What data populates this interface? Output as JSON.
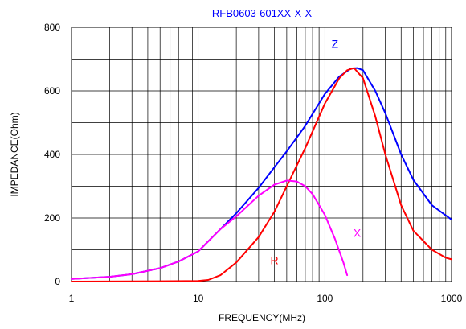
{
  "chart_data": {
    "type": "line",
    "title": "RFB0603-601XX-X-X",
    "xlabel": "FREQUENCY(MHz)",
    "ylabel": "IMPEDANCE(Ohm)",
    "xscale": "log",
    "xlim": [
      1,
      1000
    ],
    "ylim": [
      0,
      800
    ],
    "x_ticks": [
      1,
      10,
      100,
      1000
    ],
    "y_ticks": [
      0,
      200,
      400,
      600,
      800
    ],
    "grid": true,
    "colors": {
      "title": "#0000ff",
      "Z": "#0000ff",
      "R": "#ff0000",
      "X": "#ff00ff"
    },
    "series": [
      {
        "name": "Z",
        "color": "#0000ff",
        "label_at": [
          120,
          735
        ],
        "x": [
          1,
          2,
          3,
          5,
          7,
          10,
          15,
          20,
          30,
          40,
          50,
          70,
          100,
          130,
          160,
          180,
          200,
          250,
          300,
          400,
          500,
          700,
          1000
        ],
        "y": [
          8,
          15,
          23,
          42,
          63,
          95,
          165,
          215,
          295,
          360,
          410,
          490,
          590,
          645,
          670,
          672,
          665,
          600,
          530,
          400,
          320,
          240,
          195
        ]
      },
      {
        "name": "R",
        "color": "#ff0000",
        "label_at": [
          40,
          55
        ],
        "x": [
          1,
          5,
          10,
          12,
          15,
          20,
          30,
          40,
          50,
          70,
          100,
          130,
          150,
          170,
          200,
          250,
          300,
          400,
          500,
          700,
          900,
          1000
        ],
        "y": [
          0,
          1,
          2,
          5,
          20,
          60,
          140,
          220,
          300,
          420,
          560,
          640,
          665,
          672,
          640,
          520,
          400,
          240,
          160,
          100,
          75,
          70
        ]
      },
      {
        "name": "X",
        "color": "#ff00ff",
        "label_at": [
          180,
          140
        ],
        "x": [
          1,
          2,
          3,
          5,
          7,
          10,
          15,
          20,
          30,
          40,
          50,
          60,
          70,
          80,
          100,
          120,
          140,
          150
        ],
        "y": [
          8,
          15,
          23,
          42,
          63,
          95,
          165,
          205,
          270,
          305,
          318,
          315,
          300,
          275,
          210,
          135,
          60,
          20
        ]
      }
    ]
  }
}
